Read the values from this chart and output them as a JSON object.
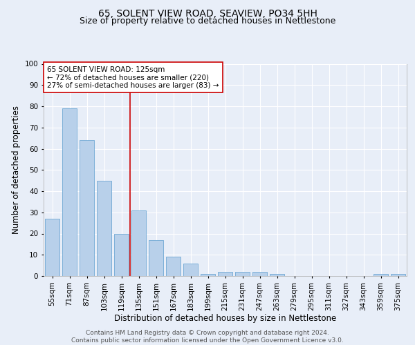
{
  "title1": "65, SOLENT VIEW ROAD, SEAVIEW, PO34 5HH",
  "title2": "Size of property relative to detached houses in Nettlestone",
  "xlabel": "Distribution of detached houses by size in Nettlestone",
  "ylabel": "Number of detached properties",
  "bar_labels": [
    "55sqm",
    "71sqm",
    "87sqm",
    "103sqm",
    "119sqm",
    "135sqm",
    "151sqm",
    "167sqm",
    "183sqm",
    "199sqm",
    "215sqm",
    "231sqm",
    "247sqm",
    "263sqm",
    "279sqm",
    "295sqm",
    "311sqm",
    "327sqm",
    "343sqm",
    "359sqm",
    "375sqm"
  ],
  "bar_values": [
    27,
    79,
    64,
    45,
    20,
    31,
    17,
    9,
    6,
    1,
    2,
    2,
    2,
    1,
    0,
    0,
    0,
    0,
    0,
    1,
    1
  ],
  "bar_color": "#b8d0ea",
  "bar_edgecolor": "#6fa8d4",
  "vline_x": 4.5,
  "vline_color": "#cc0000",
  "annotation_text": "65 SOLENT VIEW ROAD: 125sqm\n← 72% of detached houses are smaller (220)\n27% of semi-detached houses are larger (83) →",
  "annotation_box_color": "#ffffff",
  "annotation_box_edgecolor": "#cc0000",
  "ylim": [
    0,
    100
  ],
  "yticks": [
    0,
    10,
    20,
    30,
    40,
    50,
    60,
    70,
    80,
    90,
    100
  ],
  "footnote": "Contains HM Land Registry data © Crown copyright and database right 2024.\nContains public sector information licensed under the Open Government Licence v3.0.",
  "background_color": "#e8eef8",
  "grid_color": "#ffffff",
  "title_fontsize": 10,
  "subtitle_fontsize": 9,
  "axis_label_fontsize": 8.5,
  "tick_fontsize": 7.5,
  "annotation_fontsize": 7.5,
  "footnote_fontsize": 6.5
}
